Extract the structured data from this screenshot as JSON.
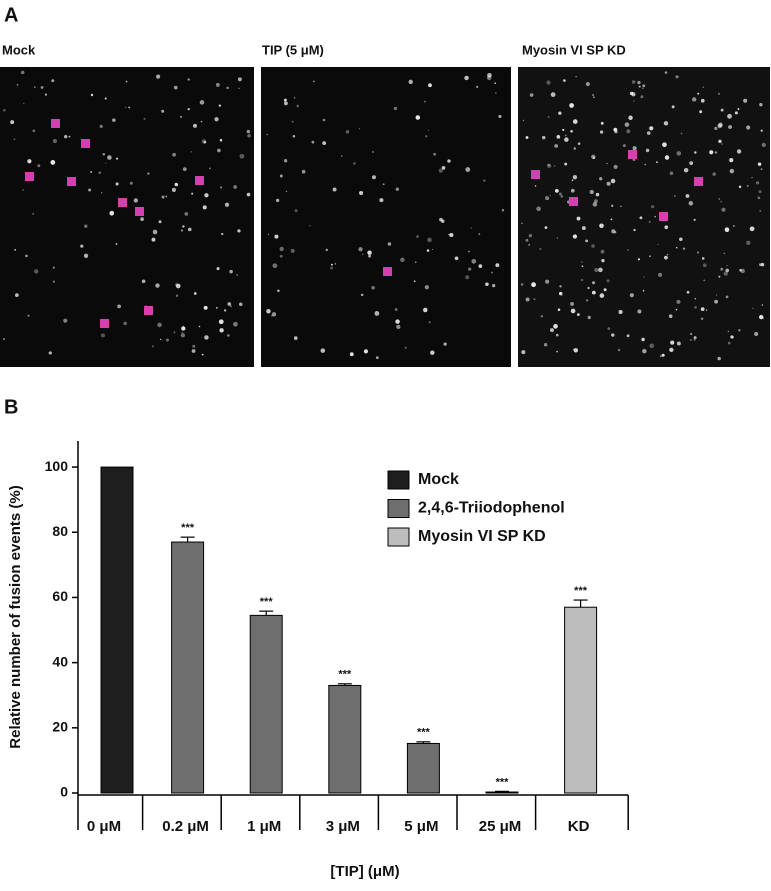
{
  "panels": {
    "label_a": "A",
    "label_b": "B",
    "image_titles": [
      "Mock",
      "TIP (5 μM)",
      "Myosin VI SP KD"
    ]
  },
  "chart_data": {
    "type": "bar",
    "ylabel": "Relative number of fusion events (%)",
    "xlabel": "[TIP] (μM)",
    "categories": [
      "0 μM",
      "0.2 μM",
      "1 μM",
      "3 μM",
      "5 μM",
      "25 μM",
      "KD"
    ],
    "series": [
      {
        "name": "Mock",
        "color": "#1e1e1e",
        "values": [
          100,
          null,
          null,
          null,
          null,
          null,
          null
        ],
        "errors": [
          0,
          null,
          null,
          null,
          null,
          null,
          null
        ],
        "significance": [
          null,
          null,
          null,
          null,
          null,
          null,
          null
        ]
      },
      {
        "name": "2,4,6-Triiodophenol",
        "color": "#6e6e6e",
        "values": [
          null,
          77,
          54.5,
          33,
          15.2,
          0.3,
          null
        ],
        "errors": [
          null,
          1.5,
          1.3,
          0.5,
          0.5,
          0.2,
          null
        ],
        "significance": [
          null,
          "***",
          "***",
          "***",
          "***",
          "***",
          null
        ]
      },
      {
        "name": "Myosin VI SP KD",
        "color": "#bdbdbd",
        "values": [
          null,
          null,
          null,
          null,
          null,
          null,
          57
        ],
        "errors": [
          null,
          null,
          null,
          null,
          null,
          null,
          2.2
        ],
        "significance": [
          null,
          null,
          null,
          null,
          null,
          null,
          "***"
        ]
      }
    ],
    "ylim": [
      0,
      108
    ],
    "yticks": [
      0,
      20,
      40,
      60,
      80,
      100
    ],
    "legend": "upper-right"
  }
}
